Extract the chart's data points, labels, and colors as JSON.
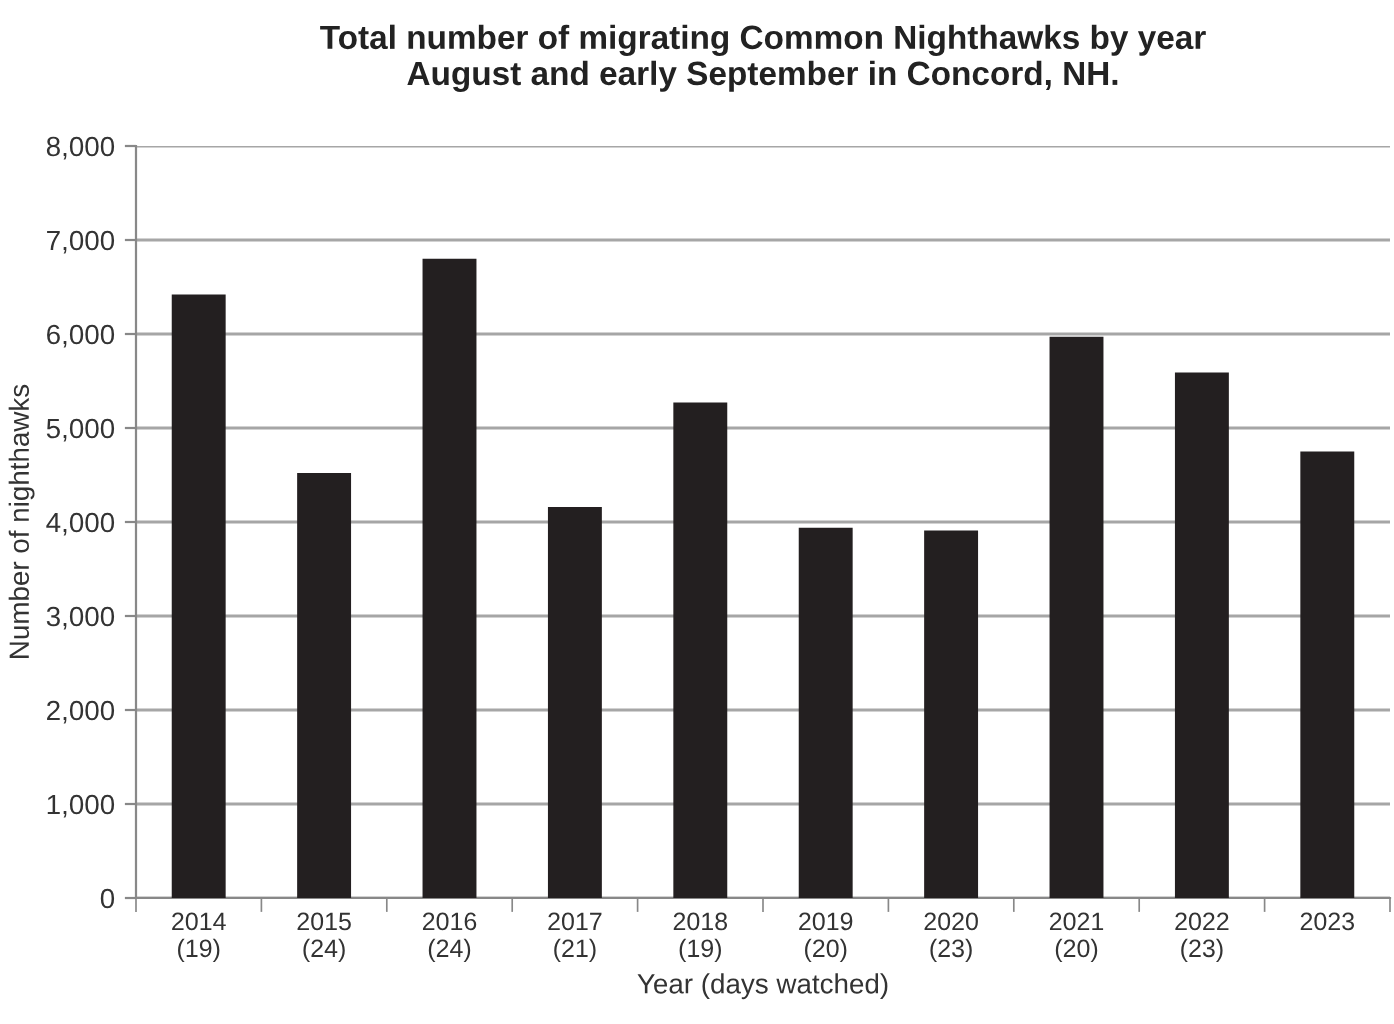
{
  "chart_data": {
    "type": "bar",
    "title": "Total number of migrating Common Nighthawks by year\nAugust and early September in Concord, NH.",
    "xlabel": "Year (days watched)",
    "ylabel": "Number of nighthawks",
    "categories": [
      "2014\n(19)",
      "2015\n(24)",
      "2016\n(24)",
      "2017\n(21)",
      "2018\n(19)",
      "2019\n(20)",
      "2020\n(23)",
      "2021\n(20)",
      "2022\n(23)",
      "2023"
    ],
    "values": [
      6420,
      4520,
      6800,
      4160,
      5270,
      3940,
      3910,
      5970,
      5590,
      4750
    ],
    "color": "#231f20",
    "ylim": [
      0,
      8000
    ],
    "yticks": [
      {
        "value": 0,
        "label": "0"
      },
      {
        "value": 1000,
        "label": "1,000"
      },
      {
        "value": 2000,
        "label": "2,000"
      },
      {
        "value": 3000,
        "label": "3,000"
      },
      {
        "value": 4000,
        "label": "4,000"
      },
      {
        "value": 5000,
        "label": "5,000"
      },
      {
        "value": 6000,
        "label": "6,000"
      },
      {
        "value": 7000,
        "label": "7,000"
      },
      {
        "value": 8000,
        "label": "8,000"
      }
    ],
    "grid": "y",
    "legend": false
  }
}
